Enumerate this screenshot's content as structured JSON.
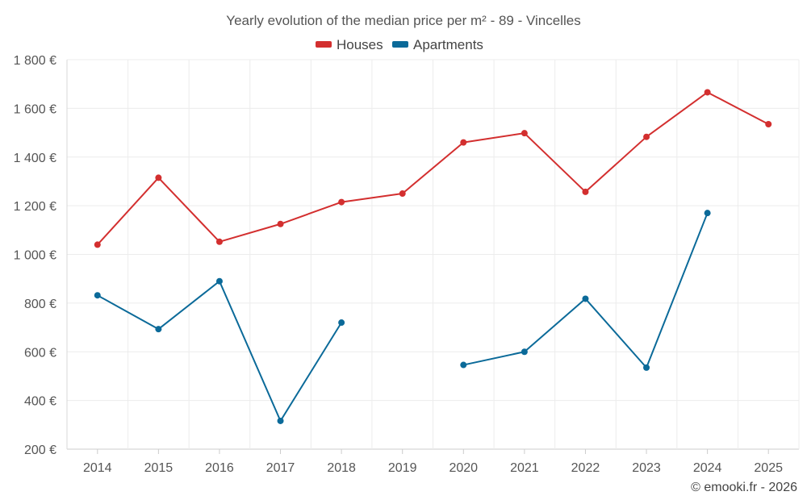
{
  "chart_data": {
    "type": "line",
    "title": "Yearly evolution of the median price per m² - 89 - Vincelles",
    "xlabel": "",
    "ylabel": "",
    "categories": [
      "2014",
      "2015",
      "2016",
      "2017",
      "2018",
      "2019",
      "2020",
      "2021",
      "2022",
      "2023",
      "2024",
      "2025"
    ],
    "y_tick_labels": [
      "200 €",
      "400 €",
      "600 €",
      "800 €",
      "1 000 €",
      "1 200 €",
      "1 400 €",
      "1 600 €",
      "1 800 €"
    ],
    "y_ticks": [
      200,
      400,
      600,
      800,
      1000,
      1200,
      1400,
      1600,
      1800
    ],
    "ylim": [
      200,
      1800
    ],
    "grid": true,
    "legend_position": "top-center",
    "series": [
      {
        "name": "Houses",
        "color": "#d32f2f",
        "values": [
          1040,
          1315,
          1052,
          1125,
          1215,
          1250,
          1460,
          1498,
          1257,
          1483,
          1666,
          1535
        ]
      },
      {
        "name": "Apartments",
        "color": "#0b6a99",
        "values": [
          832,
          693,
          890,
          316,
          720,
          null,
          546,
          600,
          818,
          535,
          1170,
          null
        ]
      }
    ]
  },
  "credit": "© emooki.fr - 2026"
}
